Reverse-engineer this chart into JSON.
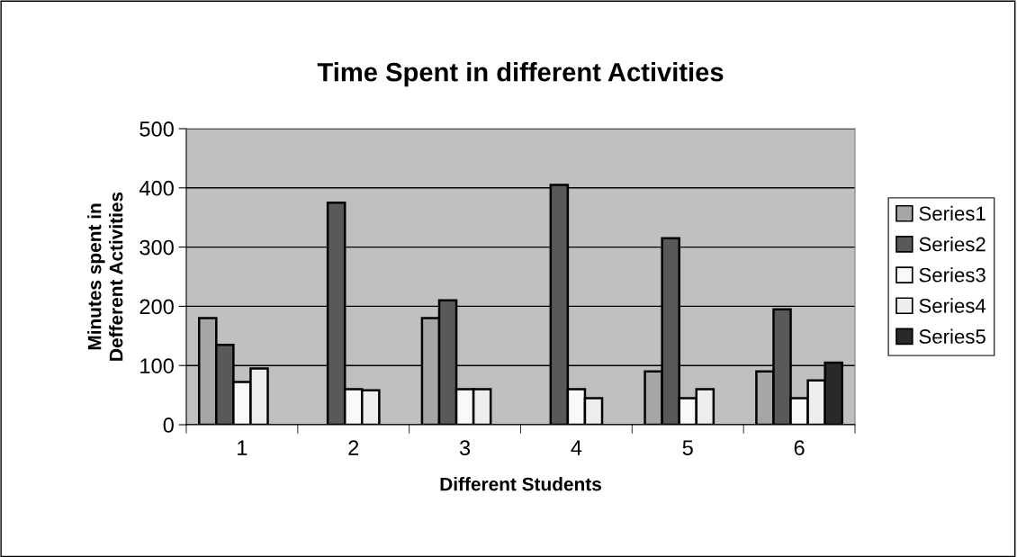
{
  "chart_data": {
    "type": "bar",
    "title": "Time Spent in different Activities",
    "xlabel": "Different Students",
    "ylabel": "Minutes spent in\nDefferent Activities",
    "categories": [
      "1",
      "2",
      "3",
      "4",
      "5",
      "6"
    ],
    "series": [
      {
        "name": "Series1",
        "color": "#a6a6a6",
        "values": [
          180,
          null,
          180,
          null,
          90,
          90
        ]
      },
      {
        "name": "Series2",
        "color": "#595959",
        "values": [
          135,
          375,
          210,
          405,
          315,
          195
        ]
      },
      {
        "name": "Series3",
        "color": "#f9f9f9",
        "values": [
          72,
          60,
          60,
          60,
          45,
          45
        ]
      },
      {
        "name": "Series4",
        "color": "#eeeeee",
        "values": [
          95,
          58,
          60,
          45,
          60,
          75
        ]
      },
      {
        "name": "Series5",
        "color": "#292929",
        "values": [
          null,
          null,
          null,
          null,
          null,
          105
        ]
      }
    ],
    "ylim": [
      0,
      500
    ],
    "yticks": [
      0,
      100,
      200,
      300,
      400,
      500
    ],
    "grid": "y",
    "legend": "right"
  }
}
